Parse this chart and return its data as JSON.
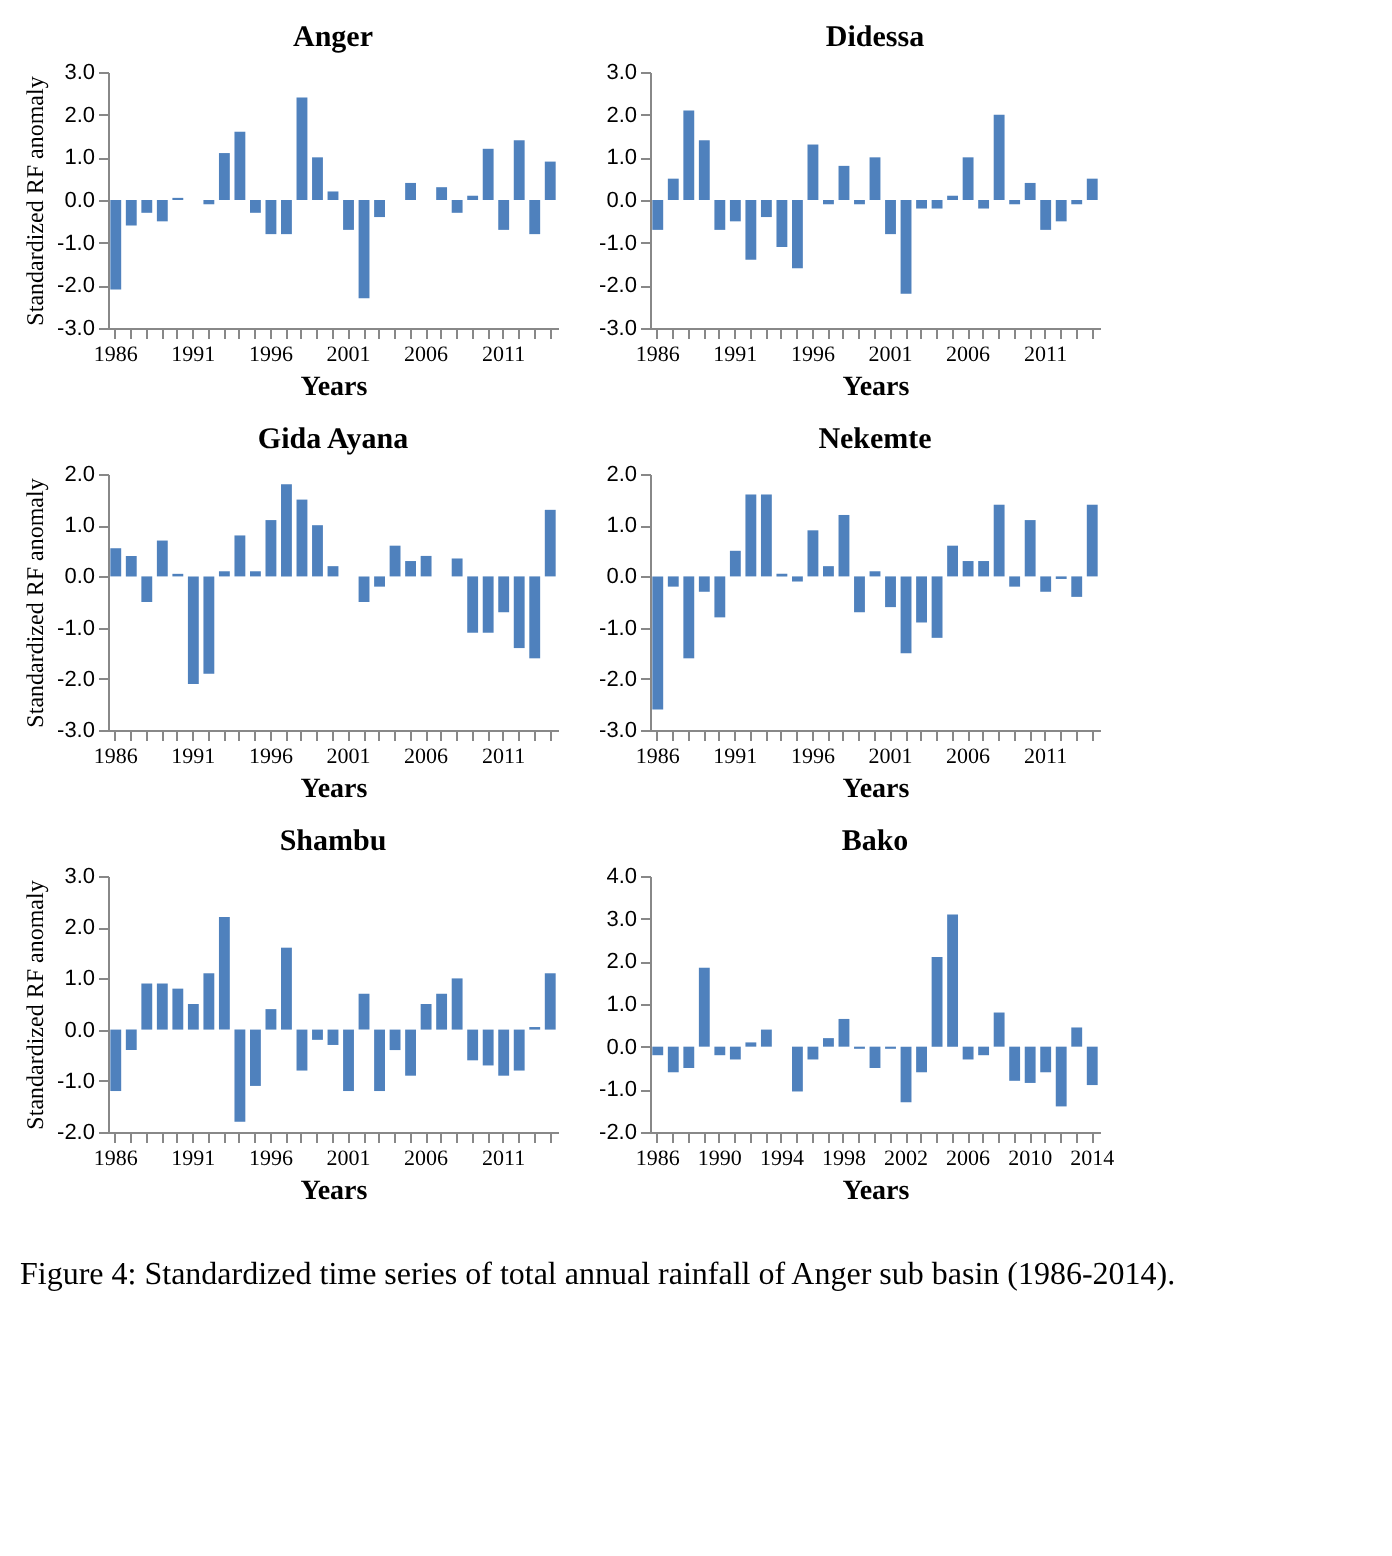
{
  "chart_data": [
    {
      "type": "bar",
      "title": "Anger",
      "xlabel": "Years",
      "ylabel": "Standardized RF anomaly",
      "color": "#4f81bd",
      "grid": false,
      "categories": [
        "1986",
        null,
        null,
        null,
        null,
        "1991",
        null,
        null,
        null,
        null,
        "1996",
        null,
        null,
        null,
        null,
        "2001",
        null,
        null,
        null,
        null,
        "2006",
        null,
        null,
        null,
        null,
        "2011",
        null,
        null,
        null
      ],
      "values": [
        -2.1,
        -0.6,
        -0.3,
        -0.5,
        0.05,
        0.0,
        -0.1,
        1.1,
        1.6,
        -0.3,
        -0.8,
        -0.8,
        2.4,
        1.0,
        0.2,
        -0.7,
        -2.3,
        -0.4,
        0.0,
        0.4,
        0.0,
        0.3,
        -0.3,
        0.1,
        1.2,
        -0.7,
        1.4,
        -0.8,
        0.9
      ],
      "ylim": [
        -3,
        3
      ],
      "yticks": [
        {
          "value": -3,
          "label": "-3.0"
        },
        {
          "value": -2,
          "label": "-2.0"
        },
        {
          "value": -1,
          "label": "-1.0"
        },
        {
          "value": 0,
          "label": "0.0"
        },
        {
          "value": 1,
          "label": "1.0"
        },
        {
          "value": 2,
          "label": "2.0"
        },
        {
          "value": 3,
          "label": "3.0"
        }
      ]
    },
    {
      "type": "bar",
      "title": "Didessa",
      "xlabel": "Years",
      "color": "#4f81bd",
      "grid": false,
      "categories": [
        "1986",
        null,
        null,
        null,
        null,
        "1991",
        null,
        null,
        null,
        null,
        "1996",
        null,
        null,
        null,
        null,
        "2001",
        null,
        null,
        null,
        null,
        "2006",
        null,
        null,
        null,
        null,
        "2011",
        null,
        null,
        null
      ],
      "values": [
        -0.7,
        0.5,
        2.1,
        1.4,
        -0.7,
        -0.5,
        -1.4,
        -0.4,
        -1.1,
        -1.6,
        1.3,
        -0.1,
        0.8,
        -0.1,
        1.0,
        -0.8,
        -2.2,
        -0.2,
        -0.2,
        0.1,
        1.0,
        -0.2,
        2.0,
        -0.1,
        0.4,
        -0.7,
        -0.5,
        -0.1,
        0.5
      ],
      "ylim": [
        -3,
        3
      ],
      "yticks": [
        {
          "value": -3,
          "label": "-3.0"
        },
        {
          "value": -2,
          "label": "-2.0"
        },
        {
          "value": -1,
          "label": "-1.0"
        },
        {
          "value": 0,
          "label": "0.0"
        },
        {
          "value": 1,
          "label": "1.0"
        },
        {
          "value": 2,
          "label": "2.0"
        },
        {
          "value": 3,
          "label": "3.0"
        }
      ]
    },
    {
      "type": "bar",
      "title": "Gida Ayana",
      "xlabel": "Years",
      "ylabel": "Standardized RF anomaly",
      "color": "#4f81bd",
      "grid": false,
      "categories": [
        "1986",
        null,
        null,
        null,
        null,
        "1991",
        null,
        null,
        null,
        null,
        "1996",
        null,
        null,
        null,
        null,
        "2001",
        null,
        null,
        null,
        null,
        "2006",
        null,
        null,
        null,
        null,
        "2011",
        null,
        null,
        null
      ],
      "values": [
        0.55,
        0.4,
        -0.5,
        0.7,
        0.05,
        -2.1,
        -1.9,
        0.1,
        0.8,
        0.1,
        1.1,
        1.8,
        1.5,
        1.0,
        0.2,
        0.0,
        -0.5,
        -0.2,
        0.6,
        0.3,
        0.4,
        0.0,
        0.35,
        -1.1,
        -1.1,
        -0.7,
        -1.4,
        -1.6,
        1.3
      ],
      "ylim": [
        -3,
        2
      ],
      "yticks": [
        {
          "value": -3,
          "label": "-3.0"
        },
        {
          "value": -2,
          "label": "-2.0"
        },
        {
          "value": -1,
          "label": "-1.0"
        },
        {
          "value": 0,
          "label": "0.0"
        },
        {
          "value": 1,
          "label": "1.0"
        },
        {
          "value": 2,
          "label": "2.0"
        }
      ]
    },
    {
      "type": "bar",
      "title": "Nekemte",
      "xlabel": "Years",
      "color": "#4f81bd",
      "grid": false,
      "categories": [
        "1986",
        null,
        null,
        null,
        null,
        "1991",
        null,
        null,
        null,
        null,
        "1996",
        null,
        null,
        null,
        null,
        "2001",
        null,
        null,
        null,
        null,
        "2006",
        null,
        null,
        null,
        null,
        "2011",
        null,
        null,
        null
      ],
      "values": [
        -2.6,
        -0.2,
        -1.6,
        -0.3,
        -0.8,
        0.5,
        1.6,
        1.6,
        0.05,
        -0.1,
        0.9,
        0.2,
        1.2,
        -0.7,
        0.1,
        -0.6,
        -1.5,
        -0.9,
        -1.2,
        0.6,
        0.3,
        0.3,
        1.4,
        -0.2,
        1.1,
        -0.3,
        -0.05,
        -0.4,
        1.4
      ],
      "ylim": [
        -3,
        2
      ],
      "yticks": [
        {
          "value": -3,
          "label": "-3.0"
        },
        {
          "value": -2,
          "label": "-2.0"
        },
        {
          "value": -1,
          "label": "-1.0"
        },
        {
          "value": 0,
          "label": "0.0"
        },
        {
          "value": 1,
          "label": "1.0"
        },
        {
          "value": 2,
          "label": "2.0"
        }
      ]
    },
    {
      "type": "bar",
      "title": "Shambu",
      "xlabel": "Years",
      "ylabel": "Standardized RF anomaly",
      "color": "#4f81bd",
      "grid": false,
      "categories": [
        "1986",
        null,
        null,
        null,
        null,
        "1991",
        null,
        null,
        null,
        null,
        "1996",
        null,
        null,
        null,
        null,
        "2001",
        null,
        null,
        null,
        null,
        "2006",
        null,
        null,
        null,
        null,
        "2011",
        null,
        null,
        null
      ],
      "values": [
        -1.2,
        -0.4,
        0.9,
        0.9,
        0.8,
        0.5,
        1.1,
        2.2,
        -1.8,
        -1.1,
        0.4,
        1.6,
        -0.8,
        -0.2,
        -0.3,
        -1.2,
        0.7,
        -1.2,
        -0.4,
        -0.9,
        0.5,
        0.7,
        1.0,
        -0.6,
        -0.7,
        -0.9,
        -0.8,
        0.05,
        1.1
      ],
      "ylim": [
        -2,
        3
      ],
      "yticks": [
        {
          "value": -2,
          "label": "-2.0"
        },
        {
          "value": -1,
          "label": "-1.0"
        },
        {
          "value": 0,
          "label": "0.0"
        },
        {
          "value": 1,
          "label": "1.0"
        },
        {
          "value": 2,
          "label": "2.0"
        },
        {
          "value": 3,
          "label": "3.0"
        }
      ]
    },
    {
      "type": "bar",
      "title": "Bako",
      "xlabel": "Years",
      "color": "#4f81bd",
      "grid": false,
      "categories": [
        "1986",
        null,
        null,
        null,
        "1990",
        null,
        null,
        null,
        "1994",
        null,
        null,
        null,
        "1998",
        null,
        null,
        null,
        "2002",
        null,
        null,
        null,
        "2006",
        null,
        null,
        null,
        "2010",
        null,
        null,
        null,
        "2014"
      ],
      "values": [
        -0.2,
        -0.6,
        -0.5,
        1.85,
        -0.2,
        -0.3,
        0.1,
        0.4,
        0.0,
        -1.05,
        -0.3,
        0.2,
        0.65,
        -0.05,
        -0.5,
        -0.05,
        -1.3,
        -0.6,
        2.1,
        3.1,
        -0.3,
        -0.2,
        0.8,
        -0.8,
        -0.85,
        -0.6,
        -1.4,
        0.45,
        -0.9
      ],
      "ylim": [
        -2,
        4
      ],
      "yticks": [
        {
          "value": -2,
          "label": "-2.0"
        },
        {
          "value": -1,
          "label": "-1.0"
        },
        {
          "value": 0,
          "label": "0.0"
        },
        {
          "value": 1,
          "label": "1.0"
        },
        {
          "value": 2,
          "label": "2.0"
        },
        {
          "value": 3,
          "label": "3.0"
        },
        {
          "value": 4,
          "label": "4.0"
        }
      ],
      "annotations": [
        "Figure 4: Standardized time series of total annual rainfall of Anger sub basin (1986-2014)."
      ]
    }
  ]
}
